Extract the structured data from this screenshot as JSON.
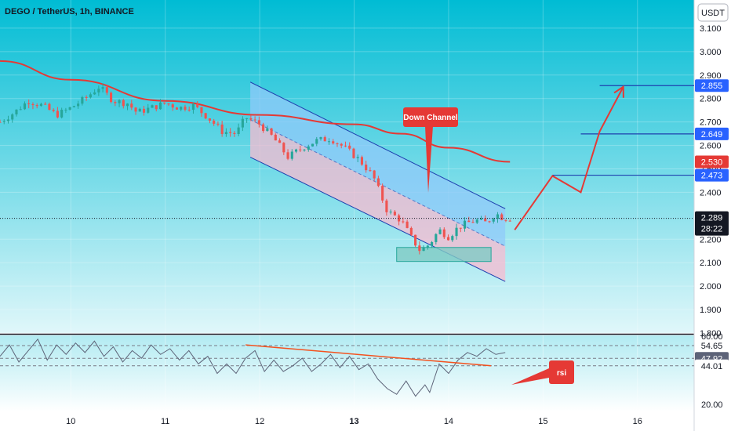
{
  "header": {
    "symbol_line": "DEGO / TetherUS, 1h, BINANCE",
    "currency_button": "USDT"
  },
  "colors": {
    "background_top": "#00bcd4",
    "background_bottom": "#e0f7fa",
    "bull": "#26a69a",
    "bear": "#ef5350",
    "ma_line": "#e53935",
    "channel_line": "#1e40af",
    "channel_upper_fill": "#90caf9",
    "channel_lower_fill": "#f8bbd0",
    "zone": "#80cbc4",
    "rsi_line": "#5d6378",
    "label_blue": "#2962ff",
    "label_red": "#e53935",
    "label_dark": "#131722"
  },
  "chart_data": [
    {
      "type": "candlestick",
      "title": "DEGO / TetherUS, 1h, BINANCE",
      "xlabel": "",
      "ylabel": "",
      "xlim": [
        9.25,
        16.6
      ],
      "ylim": [
        1.8,
        3.22
      ],
      "x_tick_labels": [
        "10",
        "11",
        "12",
        "13",
        "14",
        "15",
        "16"
      ],
      "x_tick_bold": [
        "13"
      ],
      "y_tick_labels": [
        "3.100",
        "3.000",
        "2.900",
        "2.800",
        "2.700",
        "2.600",
        "2.500",
        "2.400",
        "2.200",
        "2.100",
        "2.000",
        "1.900",
        "1.800"
      ],
      "anchors": [
        [
          9.25,
          2.7
        ],
        [
          9.4,
          2.74
        ],
        [
          9.55,
          2.79
        ],
        [
          9.7,
          2.77
        ],
        [
          9.85,
          2.73
        ],
        [
          10.0,
          2.76
        ],
        [
          10.15,
          2.8
        ],
        [
          10.3,
          2.85
        ],
        [
          10.45,
          2.79
        ],
        [
          10.6,
          2.78
        ],
        [
          10.7,
          2.74
        ],
        [
          10.85,
          2.76
        ],
        [
          11.0,
          2.78
        ],
        [
          11.15,
          2.76
        ],
        [
          11.3,
          2.77
        ],
        [
          11.45,
          2.72
        ],
        [
          11.6,
          2.66
        ],
        [
          11.75,
          2.65
        ],
        [
          11.85,
          2.72
        ],
        [
          12.0,
          2.69
        ],
        [
          12.15,
          2.63
        ],
        [
          12.3,
          2.55
        ],
        [
          12.45,
          2.59
        ],
        [
          12.6,
          2.62
        ],
        [
          12.75,
          2.63
        ],
        [
          12.9,
          2.59
        ],
        [
          13.05,
          2.54
        ],
        [
          13.2,
          2.47
        ],
        [
          13.35,
          2.32
        ],
        [
          13.5,
          2.28
        ],
        [
          13.6,
          2.21
        ],
        [
          13.7,
          2.15
        ],
        [
          13.8,
          2.18
        ],
        [
          13.9,
          2.24
        ],
        [
          14.0,
          2.21
        ],
        [
          14.1,
          2.25
        ],
        [
          14.2,
          2.27
        ],
        [
          14.3,
          2.28
        ],
        [
          14.4,
          2.27
        ],
        [
          14.5,
          2.31
        ],
        [
          14.58,
          2.29
        ],
        [
          14.65,
          2.289
        ]
      ],
      "moving_average": {
        "points": [
          [
            9.25,
            2.96
          ],
          [
            10.0,
            2.88
          ],
          [
            11.0,
            2.79
          ],
          [
            12.0,
            2.73
          ],
          [
            13.0,
            2.69
          ],
          [
            13.5,
            2.65
          ],
          [
            14.0,
            2.59
          ],
          [
            14.65,
            2.53
          ]
        ]
      },
      "down_channel": {
        "label": "Down Channel",
        "upper": [
          [
            11.9,
            2.87
          ],
          [
            14.6,
            2.33
          ]
        ],
        "middle": [
          [
            11.9,
            2.71
          ],
          [
            14.6,
            2.17
          ]
        ],
        "lower": [
          [
            11.9,
            2.55
          ],
          [
            14.6,
            2.02
          ]
        ]
      },
      "demand_zone": {
        "x": [
          13.45,
          14.45
        ],
        "y": [
          2.105,
          2.165
        ]
      },
      "projection_path": [
        [
          14.7,
          2.24
        ],
        [
          15.1,
          2.47
        ],
        [
          15.4,
          2.4
        ],
        [
          15.6,
          2.66
        ],
        [
          15.85,
          2.85
        ]
      ],
      "horizontal_levels": [
        {
          "value": 2.855,
          "x_start": 15.6
        },
        {
          "value": 2.649,
          "x_start": 15.4
        },
        {
          "value": 2.473,
          "x_start": 15.1
        }
      ],
      "current_price_line": 2.289,
      "price_labels": [
        {
          "text": "2.855",
          "value": 2.855,
          "color": "#2962ff"
        },
        {
          "text": "2.649",
          "value": 2.649,
          "color": "#2962ff"
        },
        {
          "text": "2.530",
          "value": 2.53,
          "color": "#e53935"
        },
        {
          "text": "2.473",
          "value": 2.473,
          "color": "#2962ff"
        }
      ],
      "current_label": {
        "price": "2.289",
        "countdown": "28:22",
        "value": 2.289
      }
    },
    {
      "type": "line",
      "title": "",
      "series": [],
      "ylim": [
        20,
        60
      ],
      "rsi_points": [
        [
          9.25,
          49
        ],
        [
          9.35,
          55
        ],
        [
          9.45,
          46
        ],
        [
          9.55,
          52
        ],
        [
          9.65,
          58
        ],
        [
          9.75,
          47
        ],
        [
          9.85,
          55
        ],
        [
          9.95,
          50
        ],
        [
          10.05,
          56
        ],
        [
          10.15,
          51
        ],
        [
          10.25,
          57
        ],
        [
          10.35,
          49
        ],
        [
          10.45,
          54
        ],
        [
          10.55,
          46
        ],
        [
          10.65,
          52
        ],
        [
          10.75,
          48
        ],
        [
          10.85,
          55
        ],
        [
          10.95,
          50
        ],
        [
          11.05,
          53
        ],
        [
          11.15,
          47
        ],
        [
          11.25,
          52
        ],
        [
          11.35,
          45
        ],
        [
          11.45,
          49
        ],
        [
          11.55,
          40
        ],
        [
          11.65,
          45
        ],
        [
          11.75,
          40
        ],
        [
          11.85,
          48
        ],
        [
          11.95,
          52
        ],
        [
          12.05,
          41
        ],
        [
          12.15,
          47
        ],
        [
          12.25,
          41
        ],
        [
          12.35,
          44
        ],
        [
          12.45,
          48
        ],
        [
          12.55,
          41
        ],
        [
          12.65,
          45
        ],
        [
          12.75,
          50
        ],
        [
          12.85,
          43
        ],
        [
          12.95,
          49
        ],
        [
          13.05,
          42
        ],
        [
          13.15,
          45
        ],
        [
          13.25,
          37
        ],
        [
          13.35,
          32
        ],
        [
          13.45,
          29
        ],
        [
          13.55,
          36
        ],
        [
          13.65,
          28
        ],
        [
          13.75,
          34
        ],
        [
          13.8,
          30
        ],
        [
          13.9,
          45
        ],
        [
          14.0,
          40
        ],
        [
          14.1,
          47
        ],
        [
          14.2,
          51
        ],
        [
          14.3,
          49
        ],
        [
          14.4,
          53
        ],
        [
          14.5,
          50
        ],
        [
          14.6,
          51
        ]
      ],
      "trendline": [
        [
          11.85,
          55
        ],
        [
          14.45,
          44
        ]
      ],
      "y_tick_labels": [
        "60.00",
        "20.00"
      ],
      "level_labels": [
        {
          "text": "54.65",
          "value": 54.65,
          "bg": "#ffffff",
          "fg": "#131722"
        },
        {
          "text": "47.92",
          "value": 47.92,
          "bg": "#5d6378",
          "fg": "#ffffff"
        },
        {
          "text": "44.01",
          "value": 44.01,
          "bg": "#ffffff",
          "fg": "#131722"
        }
      ],
      "annotation": "rsi"
    }
  ]
}
